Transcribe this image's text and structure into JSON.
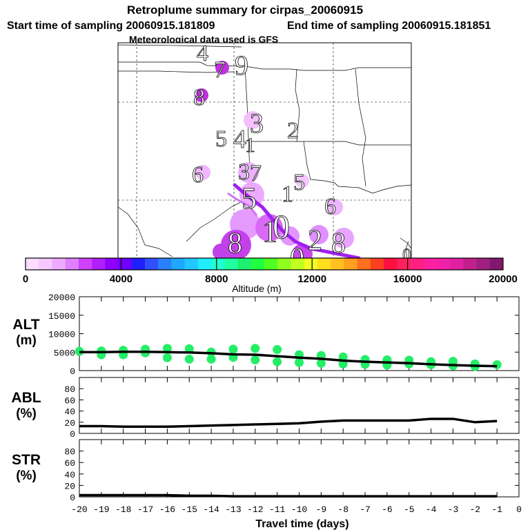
{
  "header": {
    "title": "Retroplume summary for cirpas_20060915",
    "start_label": "Start time of sampling 20060915.181809",
    "end_label": "End time of sampling 20060915.181851",
    "met_label": "Meteorological data used is GFS"
  },
  "colors": {
    "track": "#a020f0",
    "bubble_low": "#ee99ff",
    "bubble_mid": "#d040f0",
    "alt_dots": "#22ee66",
    "line": "#000000"
  },
  "map": {
    "day_labels": [
      {
        "text": "4"
      },
      {
        "text": "7"
      },
      {
        "text": "9"
      },
      {
        "text": "8"
      },
      {
        "text": "3"
      },
      {
        "text": "2"
      },
      {
        "text": "5"
      },
      {
        "text": "4"
      },
      {
        "text": "1"
      },
      {
        "text": "6"
      },
      {
        "text": "3"
      },
      {
        "text": "7"
      },
      {
        "text": "5"
      },
      {
        "text": "1"
      },
      {
        "text": "5"
      },
      {
        "text": "6"
      },
      {
        "text": "8"
      },
      {
        "text": "1"
      },
      {
        "text": "0"
      },
      {
        "text": "2"
      },
      {
        "text": "0"
      },
      {
        "text": "8"
      },
      {
        "text": "0"
      }
    ]
  },
  "colorbar": {
    "ticks": [
      "0",
      "4000",
      "8000",
      "12000",
      "16000",
      "20000"
    ],
    "label": "Altitude (m)",
    "min": 0,
    "max": 20000,
    "colors": [
      "#ffddff",
      "#f6c8ff",
      "#eeaaff",
      "#e080ff",
      "#d040ff",
      "#b020ff",
      "#9000ff",
      "#7000ff",
      "#2020ff",
      "#3050ff",
      "#2a80ff",
      "#20a8ff",
      "#20c8ff",
      "#20eeff",
      "#20ffd0",
      "#20ffa0",
      "#20f070",
      "#20ff40",
      "#50ff20",
      "#90ff20",
      "#c0ff20",
      "#f0ff20",
      "#ffe020",
      "#ffc020",
      "#ffa020",
      "#ff7020",
      "#ff4020",
      "#ff1040",
      "#ff2060",
      "#ff2080",
      "#ff20a0",
      "#f020a8",
      "#e020a0",
      "#c0208c",
      "#a02080",
      "#801870"
    ]
  },
  "chart_data": [
    {
      "type": "scatter",
      "name": "ALT",
      "ylabel": "ALT",
      "yunit": "(m)",
      "ylim": [
        0,
        20000
      ],
      "yticks": [
        "0",
        "5000",
        "10000",
        "15000",
        "20000"
      ],
      "xlim": [
        -20,
        0
      ],
      "median_x": [
        -20,
        -19,
        -18,
        -17,
        -16,
        -15,
        -14,
        -13,
        -12,
        -11,
        -10,
        -9,
        -8,
        -7,
        -6,
        -5,
        -4,
        -3,
        -2,
        -1
      ],
      "median_y": [
        5000,
        5000,
        5100,
        5100,
        5000,
        4900,
        4700,
        4400,
        4300,
        3900,
        3500,
        3200,
        2700,
        2400,
        2200,
        2000,
        1700,
        1500,
        1300,
        1200
      ],
      "dots": [
        {
          "x": -20,
          "y": 5200
        },
        {
          "x": -19,
          "y": 5300
        },
        {
          "x": -19,
          "y": 4300
        },
        {
          "x": -18,
          "y": 5500
        },
        {
          "x": -18,
          "y": 4300
        },
        {
          "x": -17,
          "y": 5800
        },
        {
          "x": -17,
          "y": 4800
        },
        {
          "x": -16,
          "y": 6000
        },
        {
          "x": -16,
          "y": 3500
        },
        {
          "x": -15,
          "y": 5900
        },
        {
          "x": -15,
          "y": 3100
        },
        {
          "x": -14,
          "y": 5000
        },
        {
          "x": -14,
          "y": 3100
        },
        {
          "x": -13,
          "y": 5800
        },
        {
          "x": -13,
          "y": 3600
        },
        {
          "x": -12,
          "y": 6000
        },
        {
          "x": -12,
          "y": 2900
        },
        {
          "x": -11,
          "y": 5700
        },
        {
          "x": -11,
          "y": 2400
        },
        {
          "x": -10,
          "y": 4300
        },
        {
          "x": -10,
          "y": 2200
        },
        {
          "x": -9,
          "y": 4100
        },
        {
          "x": -9,
          "y": 2000
        },
        {
          "x": -8,
          "y": 3700
        },
        {
          "x": -8,
          "y": 1800
        },
        {
          "x": -7,
          "y": 3000
        },
        {
          "x": -7,
          "y": 1700
        },
        {
          "x": -6,
          "y": 2900
        },
        {
          "x": -6,
          "y": 1500
        },
        {
          "x": -5,
          "y": 2800
        },
        {
          "x": -5,
          "y": 1800
        },
        {
          "x": -4,
          "y": 2400
        },
        {
          "x": -4,
          "y": 1600
        },
        {
          "x": -3,
          "y": 2500
        },
        {
          "x": -3,
          "y": 1300
        },
        {
          "x": -2,
          "y": 1800
        },
        {
          "x": -2,
          "y": 1100
        },
        {
          "x": -1,
          "y": 1600
        }
      ]
    },
    {
      "type": "line",
      "name": "ABL",
      "ylabel": "ABL",
      "yunit": "(%)",
      "ylim": [
        0,
        100
      ],
      "yticks": [
        "0",
        "20",
        "40",
        "60",
        "80"
      ],
      "xlim": [
        -20,
        0
      ],
      "x": [
        -20,
        -19,
        -18,
        -17,
        -16,
        -15,
        -14,
        -13,
        -12,
        -11,
        -10,
        -9,
        -8,
        -7,
        -6,
        -5,
        -4,
        -3,
        -2,
        -1
      ],
      "y": [
        13,
        13,
        12,
        12,
        12,
        13,
        14,
        15,
        16,
        17,
        18,
        21,
        23,
        23,
        23,
        23,
        26,
        26,
        20,
        22
      ]
    },
    {
      "type": "line",
      "name": "STR",
      "ylabel": "STR",
      "yunit": "(%)",
      "ylim": [
        0,
        100
      ],
      "yticks": [
        "0",
        "20",
        "40",
        "60",
        "80"
      ],
      "xlim": [
        -20,
        0
      ],
      "x": [
        -20,
        -19,
        -18,
        -17,
        -16,
        -15,
        -14,
        -13,
        -12,
        -11,
        -10,
        -9,
        -8,
        -7,
        -6,
        -5,
        -4,
        -3,
        -2,
        -1
      ],
      "y": [
        3,
        3,
        3,
        3,
        3,
        2,
        2,
        1,
        1,
        1,
        1,
        1,
        1,
        1,
        1,
        1,
        1,
        1,
        1,
        1
      ],
      "xlabel": "Travel time (days)",
      "xticks": [
        "-20",
        "-19",
        "-18",
        "-17",
        "-16",
        "-15",
        "-14",
        "-13",
        "-12",
        "-11",
        "-10",
        "-9",
        "-8",
        "-7",
        "-6",
        "-5",
        "-4",
        "-3",
        "-2",
        "-1",
        "0"
      ]
    }
  ]
}
